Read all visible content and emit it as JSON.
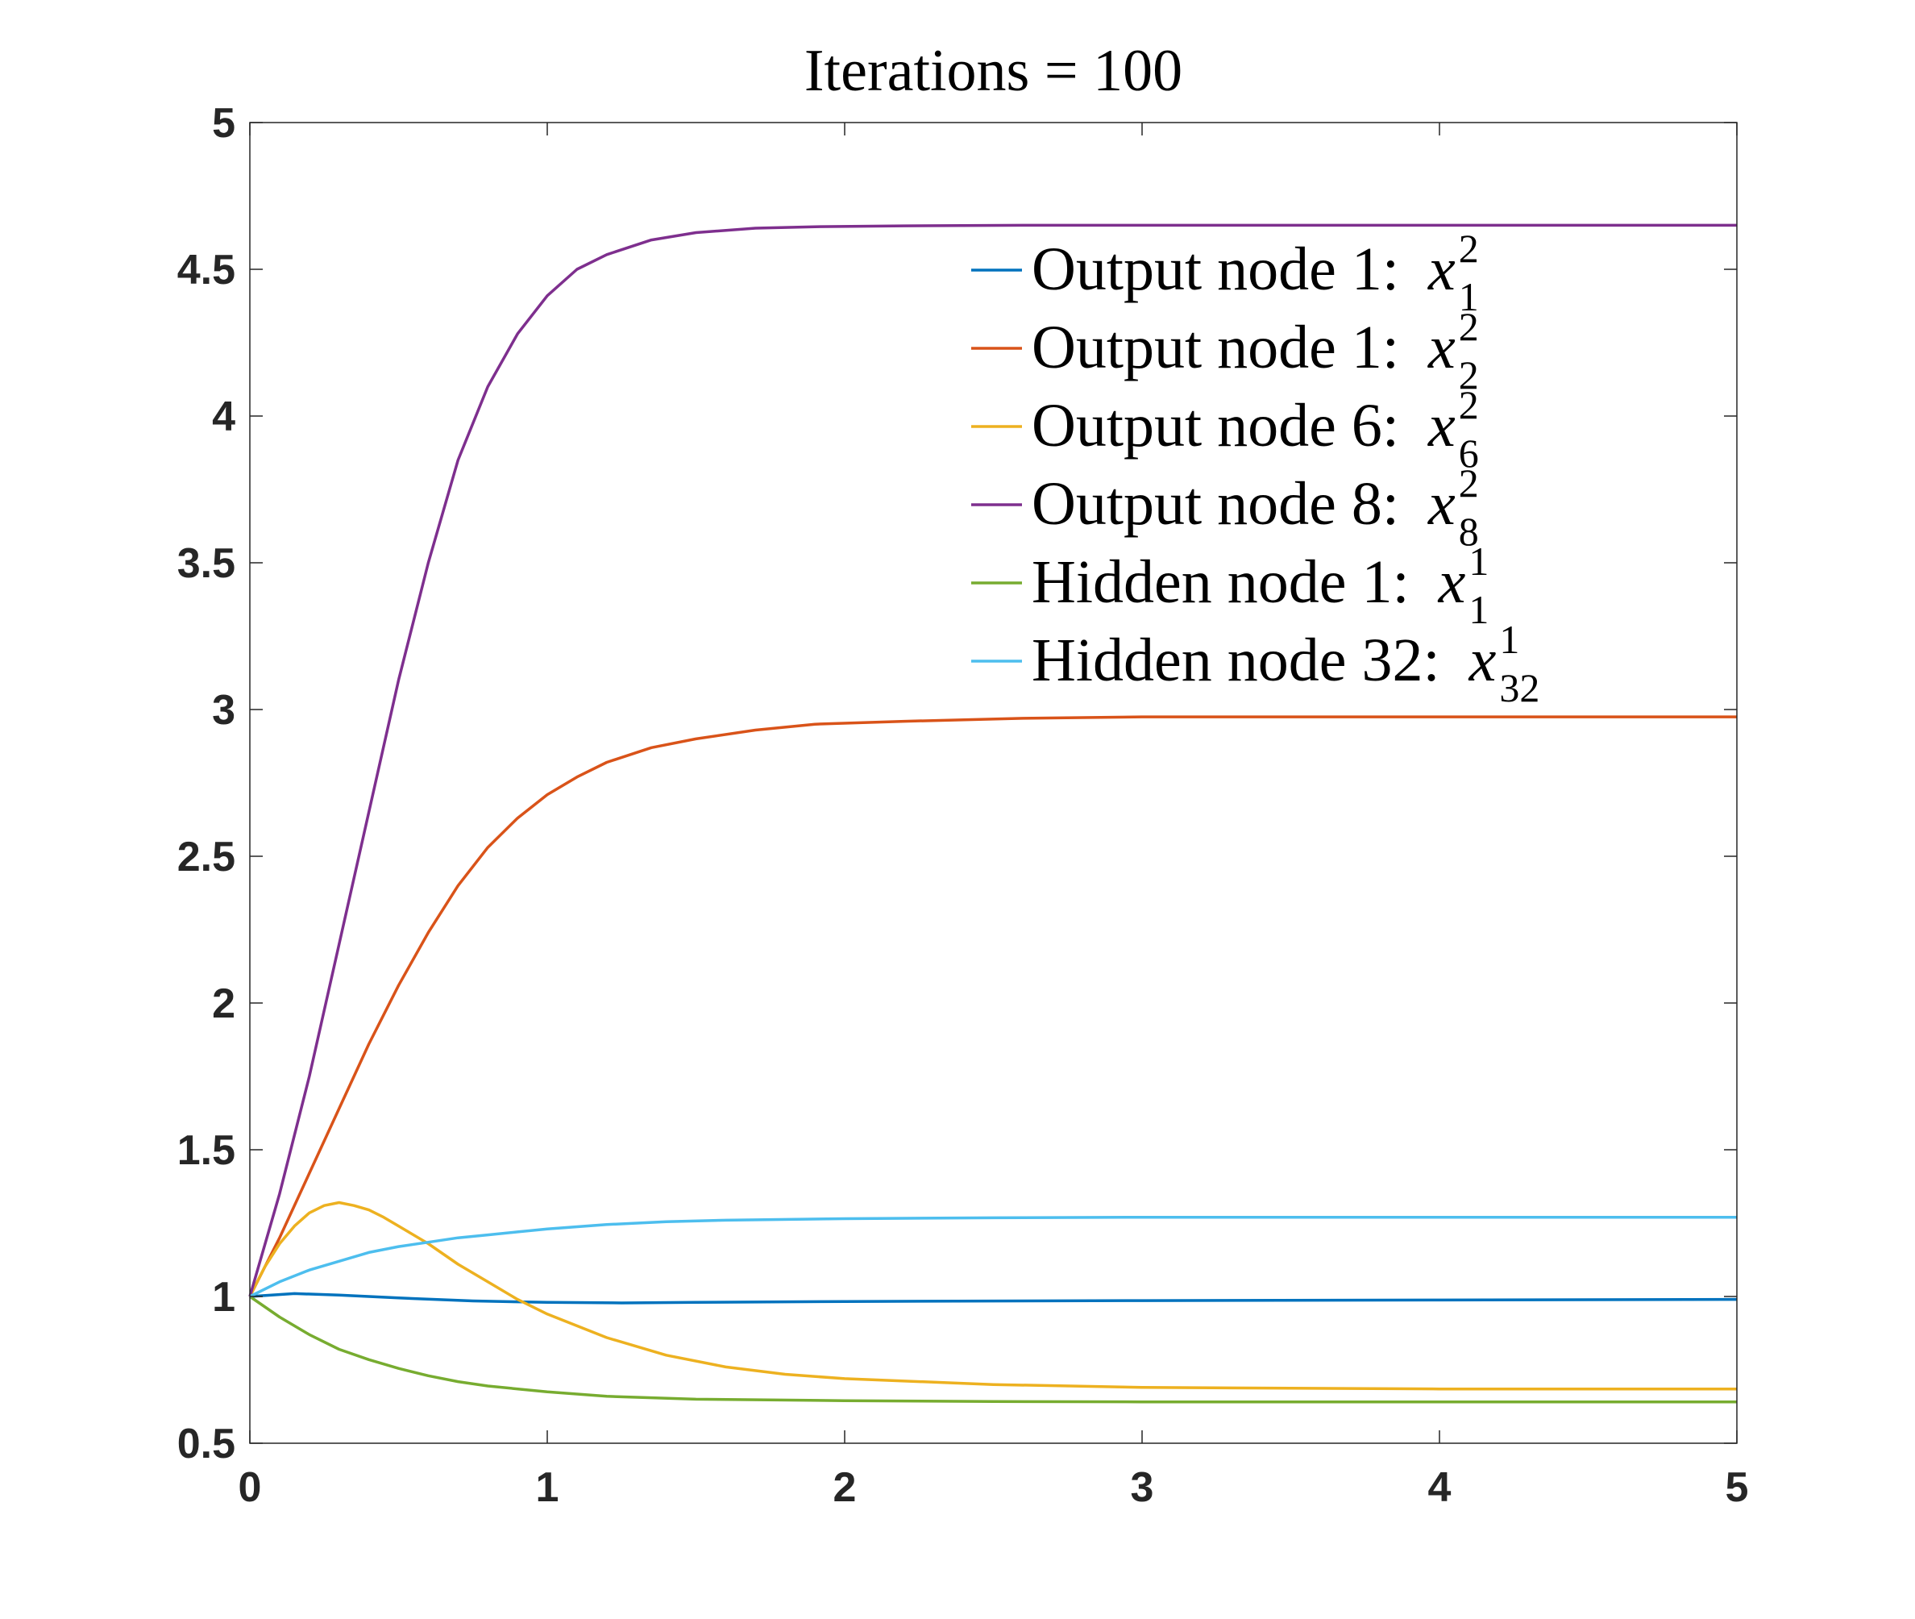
{
  "chart_data": {
    "type": "line",
    "title": "Iterations = 100",
    "xlabel": "",
    "ylabel": "",
    "xlim": [
      0,
      5
    ],
    "ylim": [
      0.5,
      5
    ],
    "xticks": [
      "0",
      "1",
      "2",
      "3",
      "4",
      "5"
    ],
    "yticks": [
      "0.5",
      "1",
      "1.5",
      "2",
      "2.5",
      "3",
      "3.5",
      "4",
      "4.5",
      "5"
    ],
    "grid": false,
    "legend_position": "top-right",
    "series": [
      {
        "name": "Output node 1: x_1^2",
        "label_text": "Output node 1:",
        "var": "x",
        "sup": "2",
        "sub": "1",
        "color": "#0072BD",
        "x": [
          0,
          0.15,
          0.3,
          0.5,
          0.75,
          1.0,
          1.25,
          1.5,
          2.0,
          3.0,
          4.0,
          5.0
        ],
        "y": [
          1.0,
          1.01,
          1.005,
          0.995,
          0.985,
          0.98,
          0.978,
          0.98,
          0.983,
          0.986,
          0.988,
          0.99
        ]
      },
      {
        "name": "Output node 1: x_2^2",
        "label_text": "Output node 1:",
        "var": "x",
        "sup": "2",
        "sub": "2",
        "color": "#D95319",
        "x": [
          0,
          0.1,
          0.2,
          0.3,
          0.4,
          0.5,
          0.6,
          0.7,
          0.8,
          0.9,
          1.0,
          1.1,
          1.2,
          1.35,
          1.5,
          1.7,
          1.9,
          2.2,
          2.6,
          3.0,
          4.0,
          5.0
        ],
        "y": [
          1.0,
          1.2,
          1.42,
          1.64,
          1.86,
          2.06,
          2.24,
          2.4,
          2.53,
          2.63,
          2.71,
          2.77,
          2.82,
          2.87,
          2.9,
          2.93,
          2.95,
          2.96,
          2.97,
          2.975,
          2.975,
          2.975
        ]
      },
      {
        "name": "Output node 6: x_6^2",
        "label_text": "Output node 6:",
        "var": "x",
        "sup": "2",
        "sub": "6",
        "color": "#EDB120",
        "x": [
          0,
          0.05,
          0.1,
          0.15,
          0.2,
          0.25,
          0.3,
          0.35,
          0.4,
          0.45,
          0.5,
          0.6,
          0.7,
          0.8,
          0.9,
          1.0,
          1.2,
          1.4,
          1.6,
          1.8,
          2.0,
          2.5,
          3.0,
          4.0,
          5.0
        ],
        "y": [
          1.0,
          1.1,
          1.18,
          1.24,
          1.285,
          1.31,
          1.32,
          1.31,
          1.295,
          1.27,
          1.24,
          1.18,
          1.11,
          1.05,
          0.99,
          0.94,
          0.86,
          0.8,
          0.76,
          0.735,
          0.72,
          0.7,
          0.69,
          0.685,
          0.685
        ]
      },
      {
        "name": "Output node 8: x_8^2",
        "label_text": "Output node 8:",
        "var": "x",
        "sup": "2",
        "sub": "8",
        "color": "#7E2F8E",
        "x": [
          0,
          0.1,
          0.2,
          0.3,
          0.4,
          0.5,
          0.6,
          0.7,
          0.8,
          0.9,
          1.0,
          1.1,
          1.2,
          1.35,
          1.5,
          1.7,
          1.9,
          2.2,
          2.6,
          3.0,
          4.0,
          5.0
        ],
        "y": [
          1.0,
          1.35,
          1.75,
          2.2,
          2.65,
          3.1,
          3.5,
          3.85,
          4.1,
          4.28,
          4.41,
          4.5,
          4.55,
          4.6,
          4.625,
          4.64,
          4.645,
          4.648,
          4.65,
          4.65,
          4.65,
          4.65
        ]
      },
      {
        "name": "Hidden node 1: x_1^1",
        "label_text": "Hidden node 1:",
        "var": "x",
        "sup": "1",
        "sub": "1",
        "color": "#77AC30",
        "x": [
          0,
          0.1,
          0.2,
          0.3,
          0.4,
          0.5,
          0.6,
          0.7,
          0.8,
          1.0,
          1.2,
          1.5,
          2.0,
          2.5,
          3.0,
          4.0,
          5.0
        ],
        "y": [
          1.0,
          0.93,
          0.87,
          0.82,
          0.785,
          0.755,
          0.73,
          0.71,
          0.695,
          0.675,
          0.66,
          0.65,
          0.645,
          0.642,
          0.641,
          0.641,
          0.641
        ]
      },
      {
        "name": "Hidden node 32: x_32^1",
        "label_text": "Hidden node 32:",
        "var": "x",
        "sup": "1",
        "sub": "32",
        "color": "#4DBEEE",
        "x": [
          0,
          0.1,
          0.2,
          0.3,
          0.4,
          0.5,
          0.6,
          0.7,
          0.8,
          0.9,
          1.0,
          1.2,
          1.4,
          1.6,
          2.0,
          2.5,
          3.0,
          4.0,
          5.0
        ],
        "y": [
          1.0,
          1.05,
          1.09,
          1.12,
          1.15,
          1.17,
          1.185,
          1.2,
          1.21,
          1.22,
          1.23,
          1.245,
          1.255,
          1.26,
          1.265,
          1.268,
          1.27,
          1.27,
          1.27
        ]
      }
    ]
  }
}
